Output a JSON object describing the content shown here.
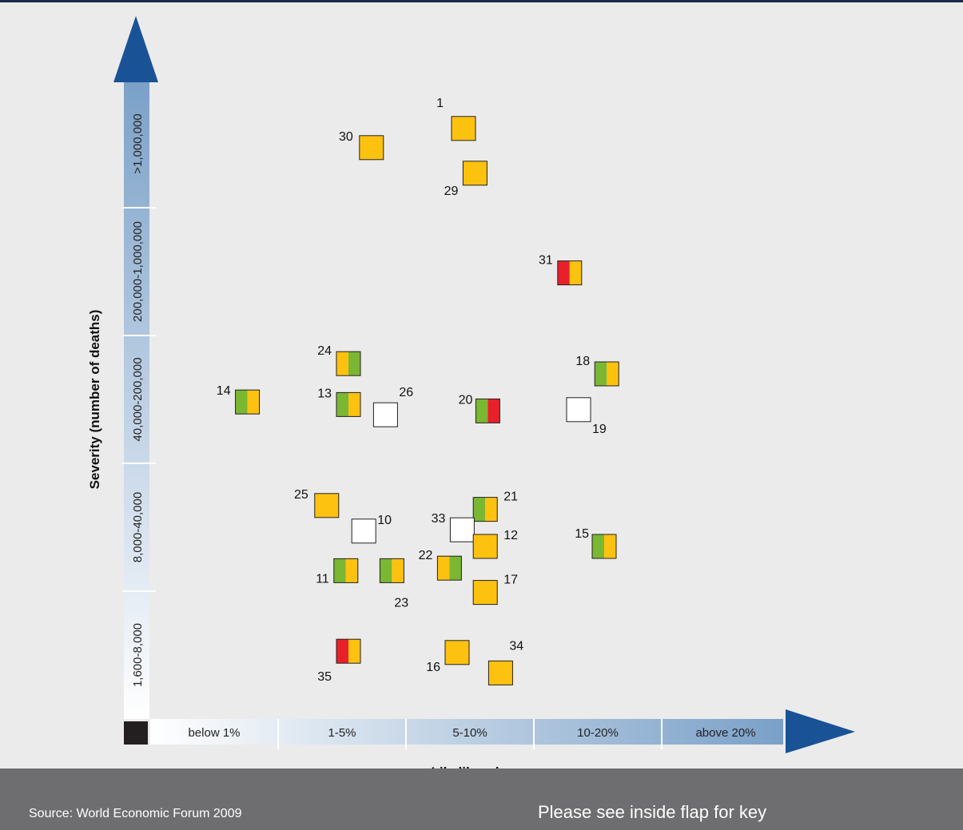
{
  "chart_data": {
    "type": "scatter",
    "x_axis": {
      "label": "Likelihood",
      "categories": [
        "below 1%",
        "1-5%",
        "5-10%",
        "10-20%",
        "above 20%"
      ]
    },
    "y_axis": {
      "label": "Severity (number of deaths)",
      "categories": [
        "1,600-8,000",
        "8,000-40,000",
        "40,000-200,000",
        "200,000-1,000,000",
        ">1,000,000"
      ]
    },
    "colors": {
      "orange": "#fdc210",
      "green": "#7ab733",
      "red": "#e8202a",
      "white": "#ffffff",
      "axis_blue": "#1a5296"
    },
    "points": [
      {
        "id": "1",
        "x": 2.45,
        "y": 4.62,
        "colors": [
          "orange"
        ]
      },
      {
        "id": "30",
        "x": 1.73,
        "y": 4.47,
        "colors": [
          "orange"
        ]
      },
      {
        "id": "29",
        "x": 2.54,
        "y": 4.27,
        "colors": [
          "orange"
        ]
      },
      {
        "id": "31",
        "x": 3.28,
        "y": 3.49,
        "colors": [
          "red",
          "orange"
        ]
      },
      {
        "id": "24",
        "x": 1.55,
        "y": 2.78,
        "colors": [
          "orange",
          "green"
        ]
      },
      {
        "id": "18",
        "x": 3.57,
        "y": 2.7,
        "colors": [
          "green",
          "orange"
        ]
      },
      {
        "id": "14",
        "x": 0.76,
        "y": 2.48,
        "colors": [
          "green",
          "orange"
        ]
      },
      {
        "id": "13",
        "x": 1.55,
        "y": 2.46,
        "colors": [
          "green",
          "orange"
        ]
      },
      {
        "id": "26",
        "x": 1.84,
        "y": 2.38,
        "colors": [
          "white"
        ]
      },
      {
        "id": "20",
        "x": 2.64,
        "y": 2.41,
        "colors": [
          "green",
          "red"
        ]
      },
      {
        "id": "19",
        "x": 3.35,
        "y": 2.42,
        "colors": [
          "white"
        ]
      },
      {
        "id": "25",
        "x": 1.38,
        "y": 1.67,
        "colors": [
          "orange"
        ]
      },
      {
        "id": "21",
        "x": 2.62,
        "y": 1.64,
        "colors": [
          "green",
          "orange"
        ]
      },
      {
        "id": "10",
        "x": 1.67,
        "y": 1.47,
        "colors": [
          "white"
        ]
      },
      {
        "id": "33",
        "x": 2.44,
        "y": 1.48,
        "colors": [
          "white"
        ]
      },
      {
        "id": "12",
        "x": 2.62,
        "y": 1.35,
        "colors": [
          "orange"
        ]
      },
      {
        "id": "15",
        "x": 3.55,
        "y": 1.35,
        "colors": [
          "green",
          "orange"
        ]
      },
      {
        "id": "22",
        "x": 2.34,
        "y": 1.18,
        "colors": [
          "orange",
          "green"
        ]
      },
      {
        "id": "11",
        "x": 1.53,
        "y": 1.16,
        "colors": [
          "green",
          "orange"
        ]
      },
      {
        "id": "23",
        "x": 1.89,
        "y": 1.16,
        "colors": [
          "green",
          "orange"
        ]
      },
      {
        "id": "17",
        "x": 2.62,
        "y": 0.99,
        "colors": [
          "orange"
        ]
      },
      {
        "id": "16",
        "x": 2.4,
        "y": 0.52,
        "colors": [
          "orange"
        ]
      },
      {
        "id": "35",
        "x": 1.55,
        "y": 0.53,
        "colors": [
          "red",
          "orange"
        ]
      },
      {
        "id": "34",
        "x": 2.74,
        "y": 0.36,
        "colors": [
          "orange"
        ]
      }
    ]
  },
  "footer": {
    "source": "Source: World Economic Forum 2009",
    "key_note": "Please see inside flap for key"
  }
}
